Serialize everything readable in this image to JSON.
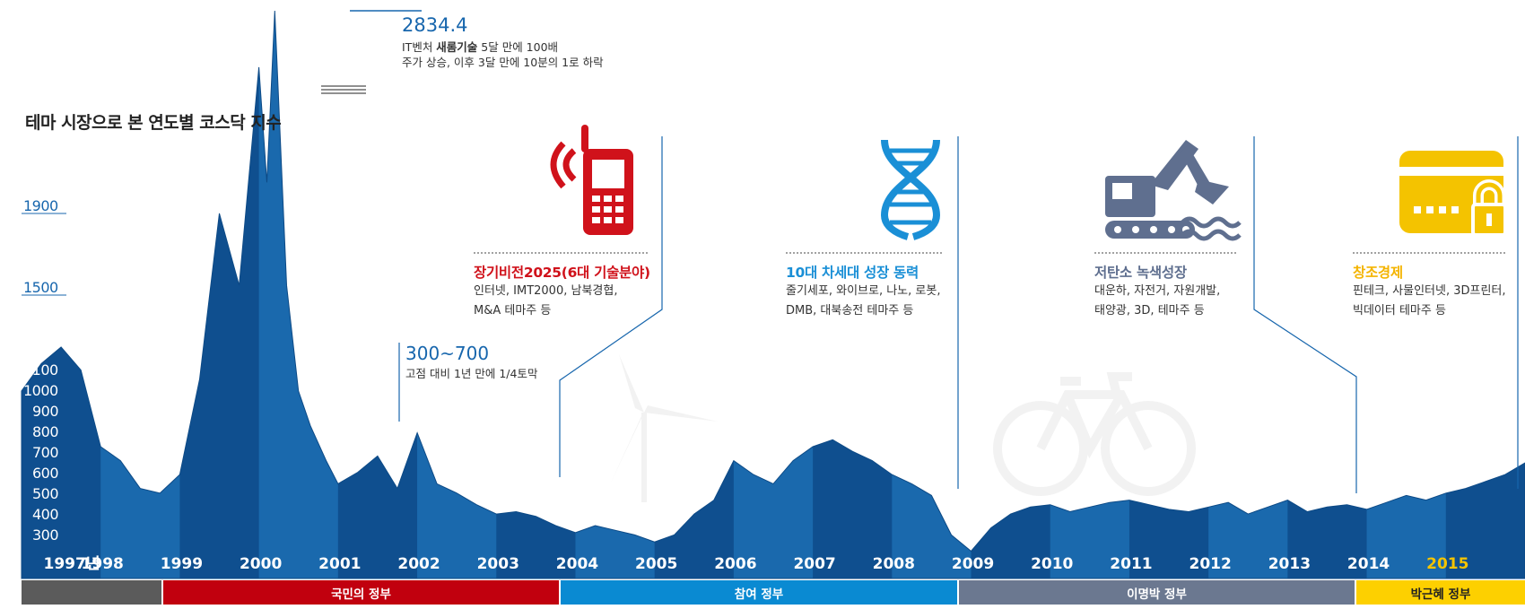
{
  "title": "테마 시장으로 본 연도별 코스닥 지수",
  "annotations": {
    "peak": {
      "value": "2834.4",
      "line1_pre": "IT벤처 ",
      "line1_bold": "새롬기술",
      "line1_post": " 5달 만에 100배",
      "line2": "주가 상승, 이후 3달 만에 10분의 1로 하락"
    },
    "trough": {
      "value": "300~700",
      "note": "고점 대비 1년 만에 1/4토막"
    }
  },
  "themes": [
    {
      "title": "장기비전2025(6대 기술분야)",
      "lines": [
        "인터넷, IMT2000, 남북경협,",
        "M&A 테마주 등"
      ],
      "color": "#d0121b",
      "icon": "mobile-phone-icon"
    },
    {
      "title": "10대 차세대 성장 동력",
      "lines": [
        "줄기세포, 와이브로, 나노, 로봇,",
        "DMB, 대북송전 테마주 등"
      ],
      "color": "#1a8fd6",
      "icon": "dna-icon"
    },
    {
      "title": "저탄소 녹색성장",
      "lines": [
        "대운하, 자전거, 자원개발,",
        "태양광, 3D, 테마주 등"
      ],
      "color": "#5f6f8f",
      "icon": "excavator-icon"
    },
    {
      "title": "창조경제",
      "lines": [
        "핀테크, 사물인터넷, 3D프린터,",
        "빅데이터 테마주 등"
      ],
      "color": "#f4b400",
      "icon": "credit-card-lock-icon"
    }
  ],
  "governments": [
    {
      "label": "",
      "color": "#5b5b5b"
    },
    {
      "label": "국민의 정부",
      "color": "#c1000e"
    },
    {
      "label": "참여 정부",
      "color": "#0a8ad2"
    },
    {
      "label": "이명박 정부",
      "color": "#6b7890"
    },
    {
      "label": "박근혜 정부",
      "color": "#fdd000"
    }
  ],
  "chart_data": {
    "type": "area",
    "title": "테마 시장으로 본 연도별 코스닥 지수",
    "x_tick_labels": [
      "1997년",
      "1998",
      "1999",
      "2000",
      "2001",
      "2002",
      "2003",
      "2004",
      "2005",
      "2006",
      "2007",
      "2008",
      "2009",
      "2010",
      "2011",
      "2012",
      "2013",
      "2014",
      "2015"
    ],
    "y_tick_labels": [
      "1900",
      "1500",
      "1100",
      "1000",
      "900",
      "800",
      "700",
      "600",
      "500",
      "400",
      "300"
    ],
    "x_range": [
      1997,
      2016
    ],
    "y_range": [
      200,
      2900
    ],
    "series": [
      {
        "name": "",
        "x": [
          1997.0,
          1997.25,
          1997.5,
          1997.75,
          1998.0,
          1998.25,
          1998.5,
          1998.75,
          1999.0,
          1999.25,
          1999.5,
          1999.75,
          2000.0,
          2000.1,
          2000.2,
          2000.35,
          2000.5,
          2000.65,
          2000.85,
          2001.0,
          2001.25,
          2001.5,
          2001.75,
          2002.0,
          2002.25,
          2002.5,
          2002.75,
          2003.0,
          2003.25,
          2003.5,
          2003.75,
          2004.0,
          2004.25,
          2004.5,
          2004.75,
          2005.0,
          2005.25,
          2005.5,
          2005.75,
          2006.0,
          2006.25,
          2006.5,
          2006.75,
          2007.0,
          2007.25,
          2007.5,
          2007.75,
          2008.0,
          2008.25,
          2008.5,
          2008.75,
          2009.0,
          2009.25,
          2009.5,
          2009.75,
          2010.0,
          2010.25,
          2010.5,
          2010.75,
          2011.0,
          2011.25,
          2011.5,
          2011.75,
          2012.0,
          2012.25,
          2012.5,
          2012.75,
          2013.0,
          2013.25,
          2013.5,
          2013.75,
          2014.0,
          2014.25,
          2014.5,
          2014.75,
          2015.0,
          2015.25,
          2015.5,
          2015.75,
          2016.0
        ],
        "y": [
          1000,
          1120,
          1200,
          1090,
          760,
          700,
          580,
          560,
          640,
          1050,
          1850,
          1500,
          2560,
          2000,
          2834,
          1500,
          1000,
          850,
          700,
          600,
          650,
          720,
          580,
          820,
          600,
          560,
          510,
          470,
          480,
          460,
          420,
          390,
          420,
          400,
          380,
          350,
          380,
          470,
          530,
          700,
          640,
          600,
          700,
          760,
          790,
          740,
          700,
          640,
          600,
          550,
          380,
          310,
          410,
          470,
          500,
          510,
          480,
          500,
          520,
          530,
          510,
          490,
          480,
          500,
          520,
          470,
          500,
          530,
          480,
          500,
          510,
          490,
          520,
          550,
          530,
          560,
          580,
          610,
          640,
          690
        ]
      }
    ]
  }
}
